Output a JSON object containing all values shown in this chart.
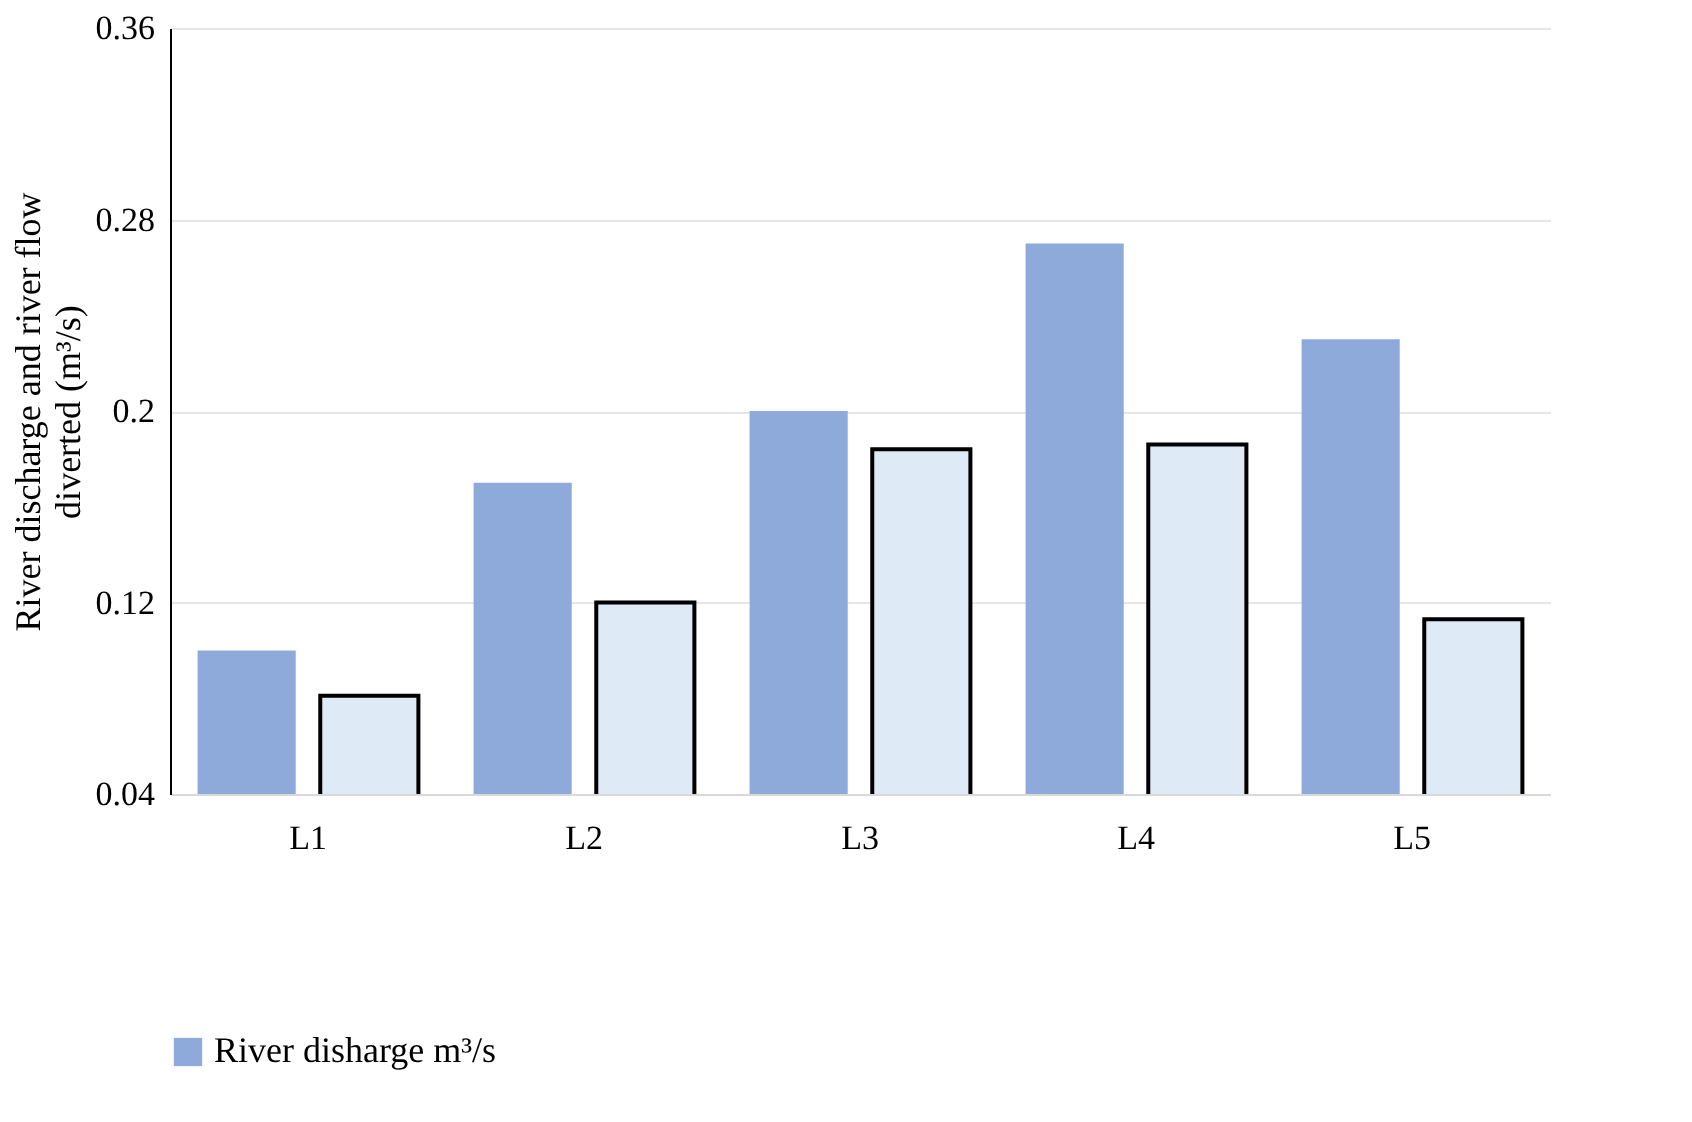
{
  "chart_data": {
    "type": "bar",
    "categories": [
      "L1",
      "L2",
      "L3",
      "L4",
      "L5"
    ],
    "ylabel": "River discharge and river flow diverted (m³/s)",
    "ylim": [
      0.04,
      0.36
    ],
    "yticks": [
      0.04,
      0.12,
      {
        "value": 0.2,
        "label": "0.2"
      },
      0.28,
      0.36
    ],
    "grid": "y",
    "legend": "bottom",
    "series": [
      {
        "name": "River disharge m³/s",
        "color": "#8eaadb",
        "values": [
          0.1,
          0.17,
          0.2,
          0.27,
          0.23
        ]
      },
      {
        "color": "#deebf7",
        "values": [
          0.081,
          0.12,
          0.184,
          0.186,
          0.113
        ]
      }
    ]
  }
}
